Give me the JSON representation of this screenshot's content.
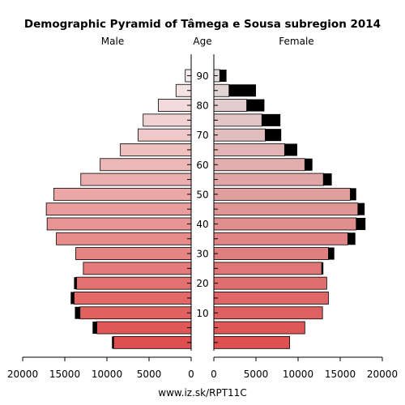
{
  "chart_data": {
    "type": "bar",
    "title": "Demographic Pyramid of Tâmega e Sousa subregion 2014",
    "headers": {
      "male": "Male",
      "age": "Age",
      "female": "Female"
    },
    "footer": "www.iz.sk/RPT11C",
    "age_ticks": [
      "10",
      "20",
      "30",
      "40",
      "50",
      "60",
      "70",
      "80",
      "90"
    ],
    "x_ticks_left": [
      "20000",
      "15000",
      "10000",
      "5000",
      "0"
    ],
    "x_ticks_right": [
      "0",
      "5000",
      "10000",
      "15000",
      "20000"
    ],
    "xlim": [
      0,
      20000
    ],
    "age_groups": [
      "0-4",
      "5-9",
      "10-14",
      "15-19",
      "20-24",
      "25-29",
      "30-34",
      "35-39",
      "40-44",
      "45-49",
      "50-54",
      "55-59",
      "60-64",
      "65-69",
      "70-74",
      "75-79",
      "80-84",
      "85-89",
      "90+"
    ],
    "series": [
      {
        "name": "Male",
        "values": [
          9200,
          11200,
          13200,
          13900,
          13600,
          12800,
          13700,
          16000,
          17100,
          17200,
          16300,
          13100,
          10800,
          8400,
          6300,
          5700,
          3900,
          1800,
          700
        ]
      },
      {
        "name": "Male (excess)",
        "values": [
          200,
          500,
          600,
          400,
          300,
          0,
          0,
          0,
          0,
          0,
          0,
          0,
          0,
          0,
          0,
          0,
          0,
          0,
          0
        ]
      },
      {
        "name": "Female",
        "values": [
          9000,
          10800,
          12900,
          13600,
          13400,
          12800,
          13600,
          15900,
          16900,
          17100,
          16200,
          13000,
          10800,
          8400,
          6100,
          5700,
          3900,
          1800,
          700
        ]
      },
      {
        "name": "Female (excess)",
        "values": [
          0,
          0,
          0,
          0,
          0,
          200,
          700,
          900,
          1100,
          800,
          700,
          1000,
          900,
          1500,
          1900,
          2200,
          2100,
          3200,
          800
        ]
      }
    ]
  }
}
